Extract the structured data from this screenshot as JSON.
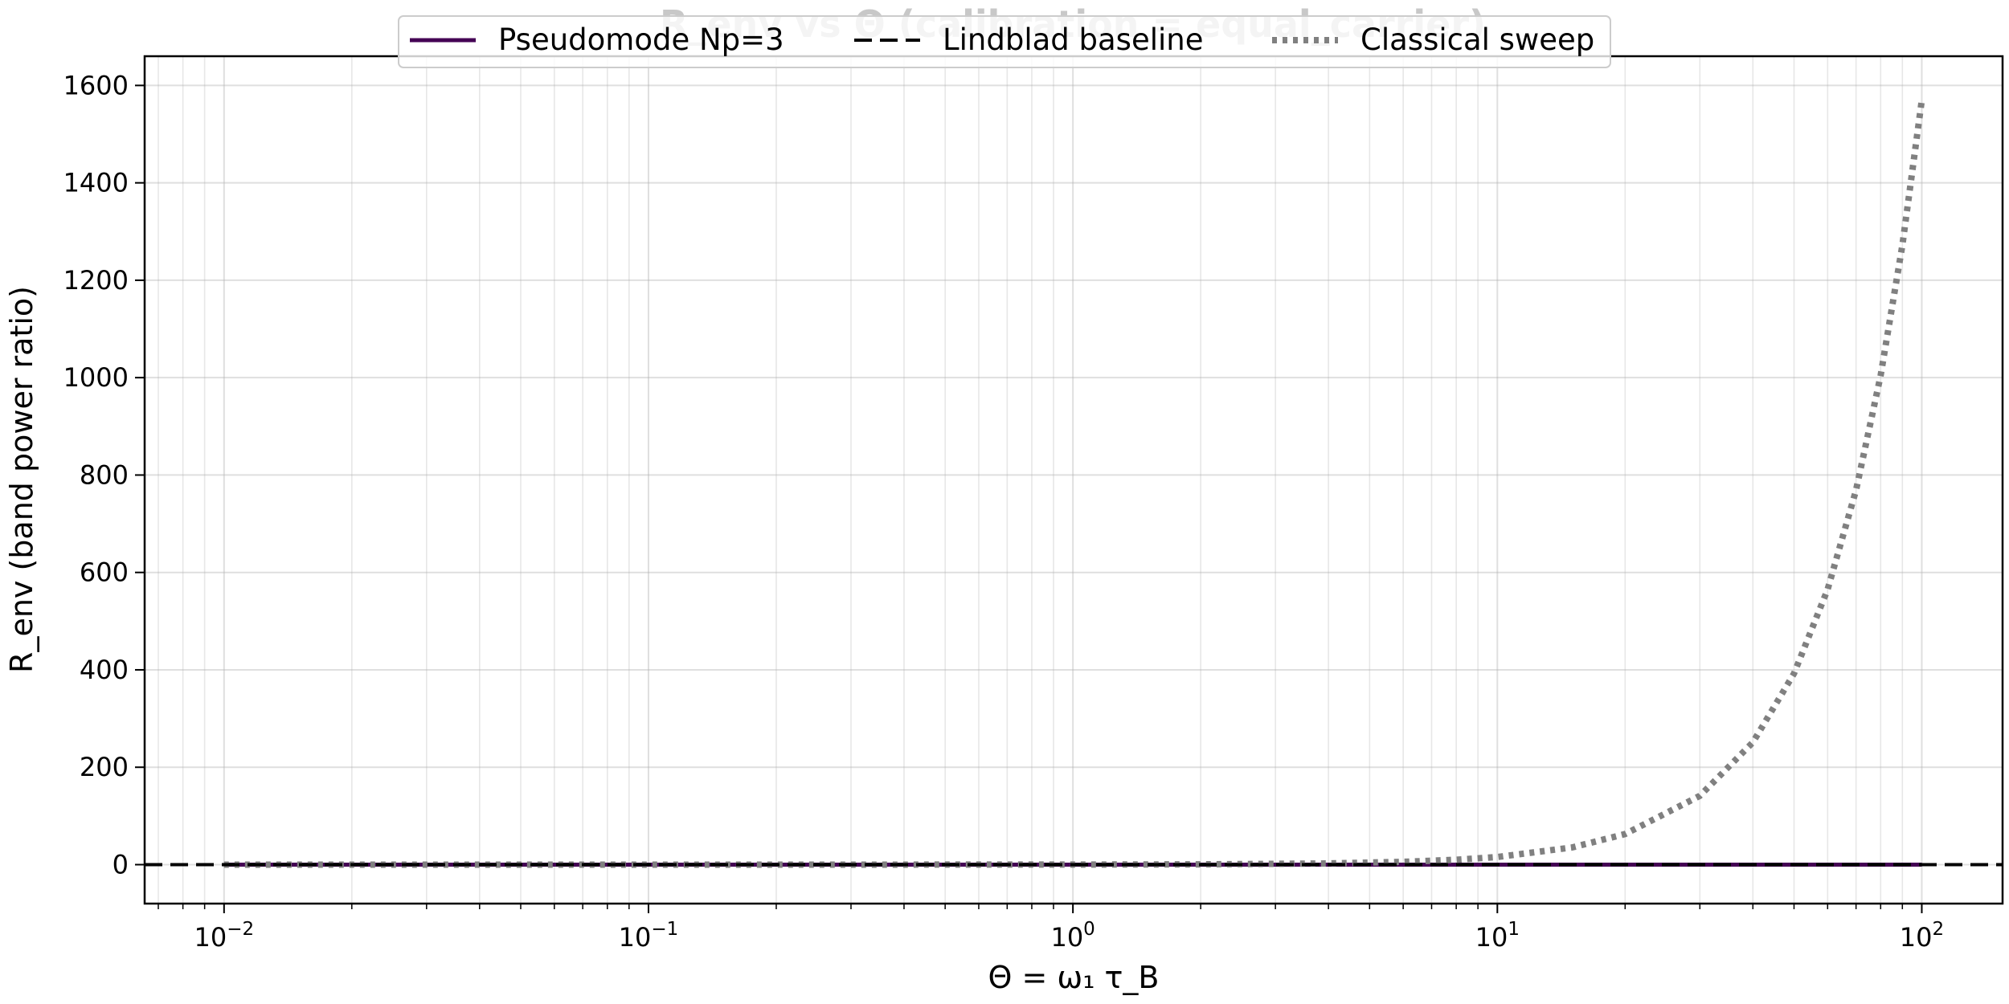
{
  "chart_data": {
    "type": "line",
    "title": "R_env vs Θ (calibration = equal_carrier)",
    "xlabel": "Θ = ω₁ τ_B",
    "ylabel": "R_env (band power ratio)",
    "x_scale": "log",
    "xlim": [
      0.0065,
      155
    ],
    "ylim": [
      -80,
      1660
    ],
    "grid": true,
    "legend_position": "top-center",
    "x_ticks": [
      {
        "value": 0.01,
        "base": "10",
        "exp": "−2"
      },
      {
        "value": 0.1,
        "base": "10",
        "exp": "−1"
      },
      {
        "value": 1,
        "base": "10",
        "exp": "0"
      },
      {
        "value": 10,
        "base": "10",
        "exp": "1"
      },
      {
        "value": 100,
        "base": "10",
        "exp": "2"
      }
    ],
    "y_ticks": [
      0,
      200,
      400,
      600,
      800,
      1000,
      1200,
      1400,
      1600
    ],
    "series": [
      {
        "name": "Pseudomode Np=3",
        "style": "solid",
        "color": "#440154",
        "x": [
          0.01,
          0.1,
          1,
          10,
          100
        ],
        "y": [
          0,
          0,
          0,
          0,
          0
        ]
      },
      {
        "name": "Lindblad baseline",
        "style": "dashed",
        "color": "#000000",
        "x": [
          0.0065,
          155
        ],
        "y": [
          0,
          0
        ]
      },
      {
        "name": "Classical sweep",
        "style": "dotted",
        "color": "#808080",
        "x": [
          0.01,
          0.1,
          1,
          2,
          4,
          6,
          8,
          10,
          15,
          20,
          30,
          40,
          50,
          60,
          70,
          80,
          90,
          100
        ],
        "y": [
          0.0,
          0.0,
          0.16,
          0.63,
          2.5,
          5.7,
          10.1,
          15.7,
          35.3,
          62.8,
          141.3,
          251.2,
          392.5,
          565.2,
          769.3,
          1004.8,
          1271.7,
          1570
        ]
      }
    ]
  }
}
